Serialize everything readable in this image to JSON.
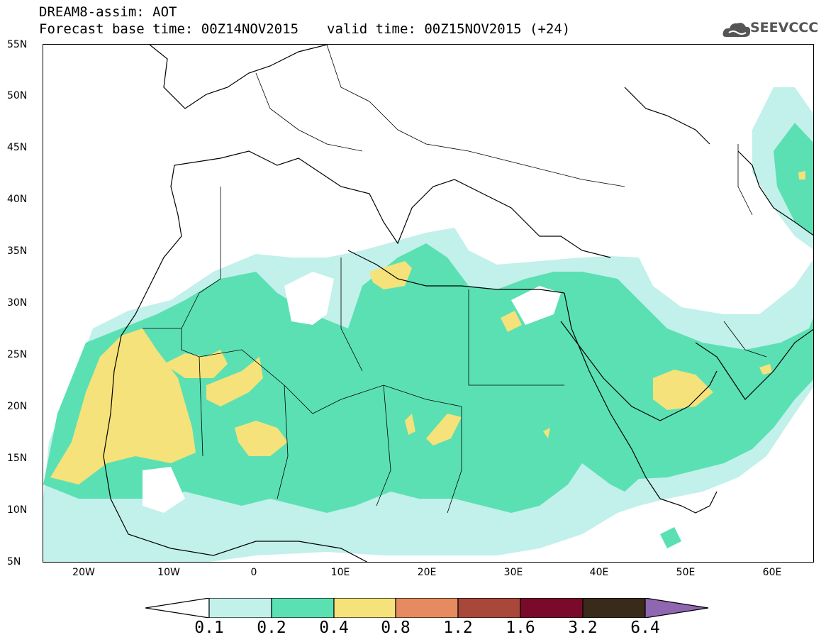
{
  "title": {
    "line1": "DREAM8-assim: AOT",
    "base_time": "Forecast base time: 00Z14NOV2015",
    "valid_time": "valid time: 00Z15NOV2015 (+24)"
  },
  "logo": {
    "text": "SEEVCCC",
    "icon": "cloud-icon"
  },
  "map": {
    "lat_labels": [
      "55N",
      "50N",
      "45N",
      "40N",
      "35N",
      "30N",
      "25N",
      "20N",
      "15N",
      "10N",
      "5N"
    ],
    "lon_labels": [
      "20W",
      "10W",
      "0",
      "10E",
      "20E",
      "30E",
      "40E",
      "50E",
      "60E"
    ]
  },
  "colorbar": {
    "labels": [
      "0.1",
      "0.2",
      "0.4",
      "0.8",
      "1.2",
      "1.6",
      "3.2",
      "6.4"
    ],
    "colors": [
      "#ffffff",
      "#c2f0ea",
      "#5be0b3",
      "#f5e27a",
      "#e68a60",
      "#a8473a",
      "#7a0a2a",
      "#3a2a1a",
      "#8f66b0"
    ]
  }
}
